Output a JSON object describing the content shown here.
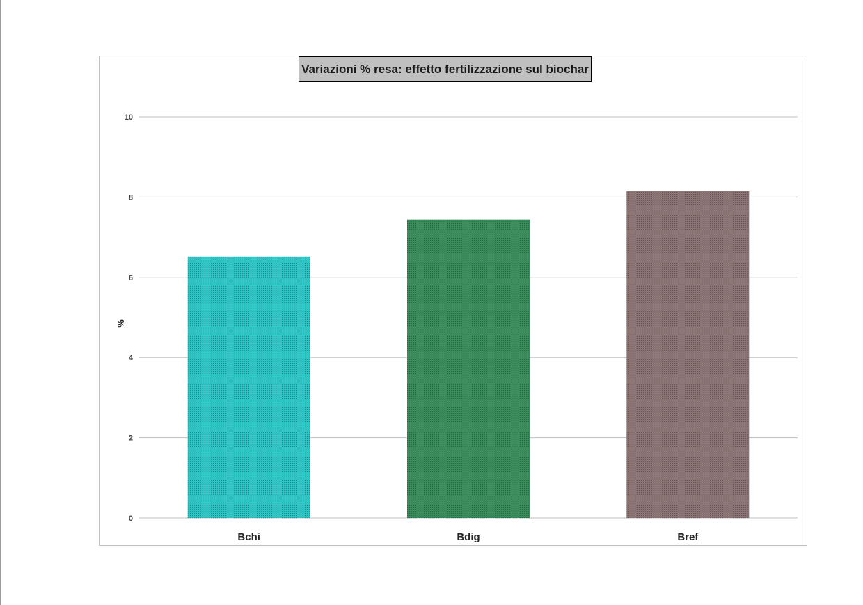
{
  "chart_data": {
    "type": "bar",
    "title": "Variazioni % resa: effetto fertilizzazione sul biochar",
    "xlabel": "",
    "ylabel": "%",
    "categories": [
      "Bchi",
      "Bdig",
      "Bref"
    ],
    "values": [
      6.52,
      7.44,
      8.15
    ],
    "colors": [
      "#2ec4c4",
      "#3a8c5c",
      "#8c7474"
    ],
    "ylim": [
      0,
      10
    ],
    "yticks": [
      0,
      2,
      4,
      6,
      8,
      10
    ],
    "grid": true,
    "legend": "none"
  }
}
